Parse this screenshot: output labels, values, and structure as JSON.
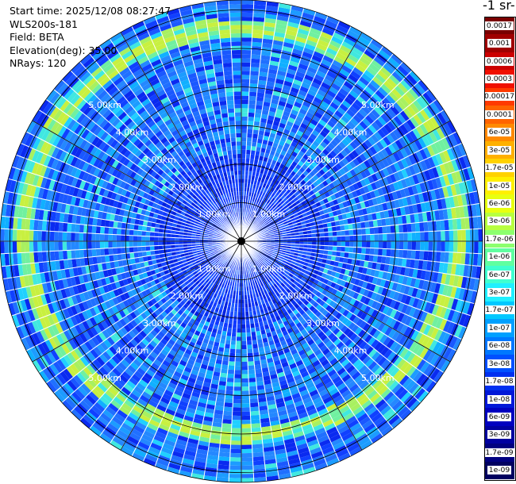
{
  "header": {
    "start_time": "Start time: 2025/12/08 08:27:47",
    "instrument": "WLS200s-181",
    "field": "Field: BETA",
    "elevation": "Elevation(deg): 35.00",
    "nrays": "NRays: 120"
  },
  "colorbar": {
    "unit_label": "-1 sr-",
    "labels": [
      "0.0017",
      "0.001",
      "0.0006",
      "0.0003",
      "0.00017",
      "0.0001",
      "6e-05",
      "3e-05",
      "1.7e-05",
      "1e-05",
      "6e-06",
      "3e-06",
      "1.7e-06",
      "1e-06",
      "6e-07",
      "3e-07",
      "1.7e-07",
      "1e-07",
      "6e-08",
      "3e-08",
      "1.7e-08",
      "1e-08",
      "6e-09",
      "3e-09",
      "1.7e-09",
      "1e-09"
    ],
    "colors": [
      "#7a0000",
      "#a00000",
      "#cc0000",
      "#f01000",
      "#ff3a00",
      "#ff6400",
      "#ff8a00",
      "#ffb000",
      "#ffd200",
      "#fff000",
      "#e8ff10",
      "#b8ff40",
      "#8cff6e",
      "#60ffa0",
      "#40ffd0",
      "#20f0ff",
      "#00c8ff",
      "#00a0ff",
      "#0078ff",
      "#0050ff",
      "#0030f0",
      "#0018d8",
      "#0000c0",
      "#0000a0",
      "#000080",
      "#000060"
    ]
  },
  "rings": {
    "labels": [
      "1.00km",
      "2.00km",
      "3.00km",
      "4.00km",
      "5.00km"
    ]
  }
}
